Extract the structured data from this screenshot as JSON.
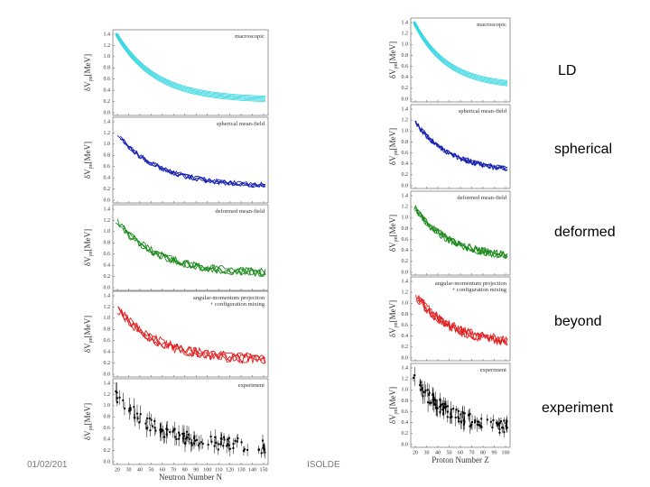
{
  "slide": {
    "labels": [
      "LD",
      "spherical",
      "deformed",
      "beyond",
      "experiment"
    ],
    "footer": {
      "date": "01/02/201",
      "center": "ISOLDE"
    }
  },
  "figures": [
    {
      "xlabel": "Neutron Number N",
      "xticks": [
        "20",
        "30",
        "40",
        "50",
        "60",
        "70",
        "80",
        "90",
        "100",
        "110",
        "120",
        "130",
        "140",
        "150"
      ],
      "yticks": [
        "0.0",
        "0.2",
        "0.4",
        "0.6",
        "0.8",
        "1.0",
        "1.2",
        "1.4"
      ],
      "ylabel": {
        "main": "δV",
        "sub": "pn",
        "unit": "[MeV]"
      },
      "panels": [
        {
          "lines": [
            "macroscopic"
          ],
          "color": "#33d6e0"
        },
        {
          "lines": [
            "spherical mean-field"
          ],
          "color": "#1520b0"
        },
        {
          "lines": [
            "deformed mean-field"
          ],
          "color": "#1a8a1a"
        },
        {
          "lines": [
            "angular-momentum projection",
            "+ configuration mixing"
          ],
          "color": "#e02020"
        },
        {
          "lines": [
            "experiment"
          ],
          "color": "#000000"
        }
      ]
    },
    {
      "xlabel": "Proton Number Z",
      "xticks": [
        "20",
        "30",
        "40",
        "50",
        "60",
        "70",
        "80",
        "90",
        "100"
      ],
      "yticks": [
        "0.0",
        "0.2",
        "0.4",
        "0.6",
        "0.8",
        "1.0",
        "1.2",
        "1.4"
      ],
      "ylabel": {
        "main": "δV",
        "sub": "pn",
        "unit": "[MeV]"
      },
      "panels": [
        {
          "lines": [
            "macroscopic"
          ],
          "color": "#33d6e0"
        },
        {
          "lines": [
            "spherical mean-field"
          ],
          "color": "#1520b0"
        },
        {
          "lines": [
            "deformed mean-field"
          ],
          "color": "#1a8a1a"
        },
        {
          "lines": [
            "angular-momentum projection",
            "+ configuration mixing"
          ],
          "color": "#e02020"
        },
        {
          "lines": [
            "experiment"
          ],
          "color": "#000000"
        }
      ]
    }
  ]
}
